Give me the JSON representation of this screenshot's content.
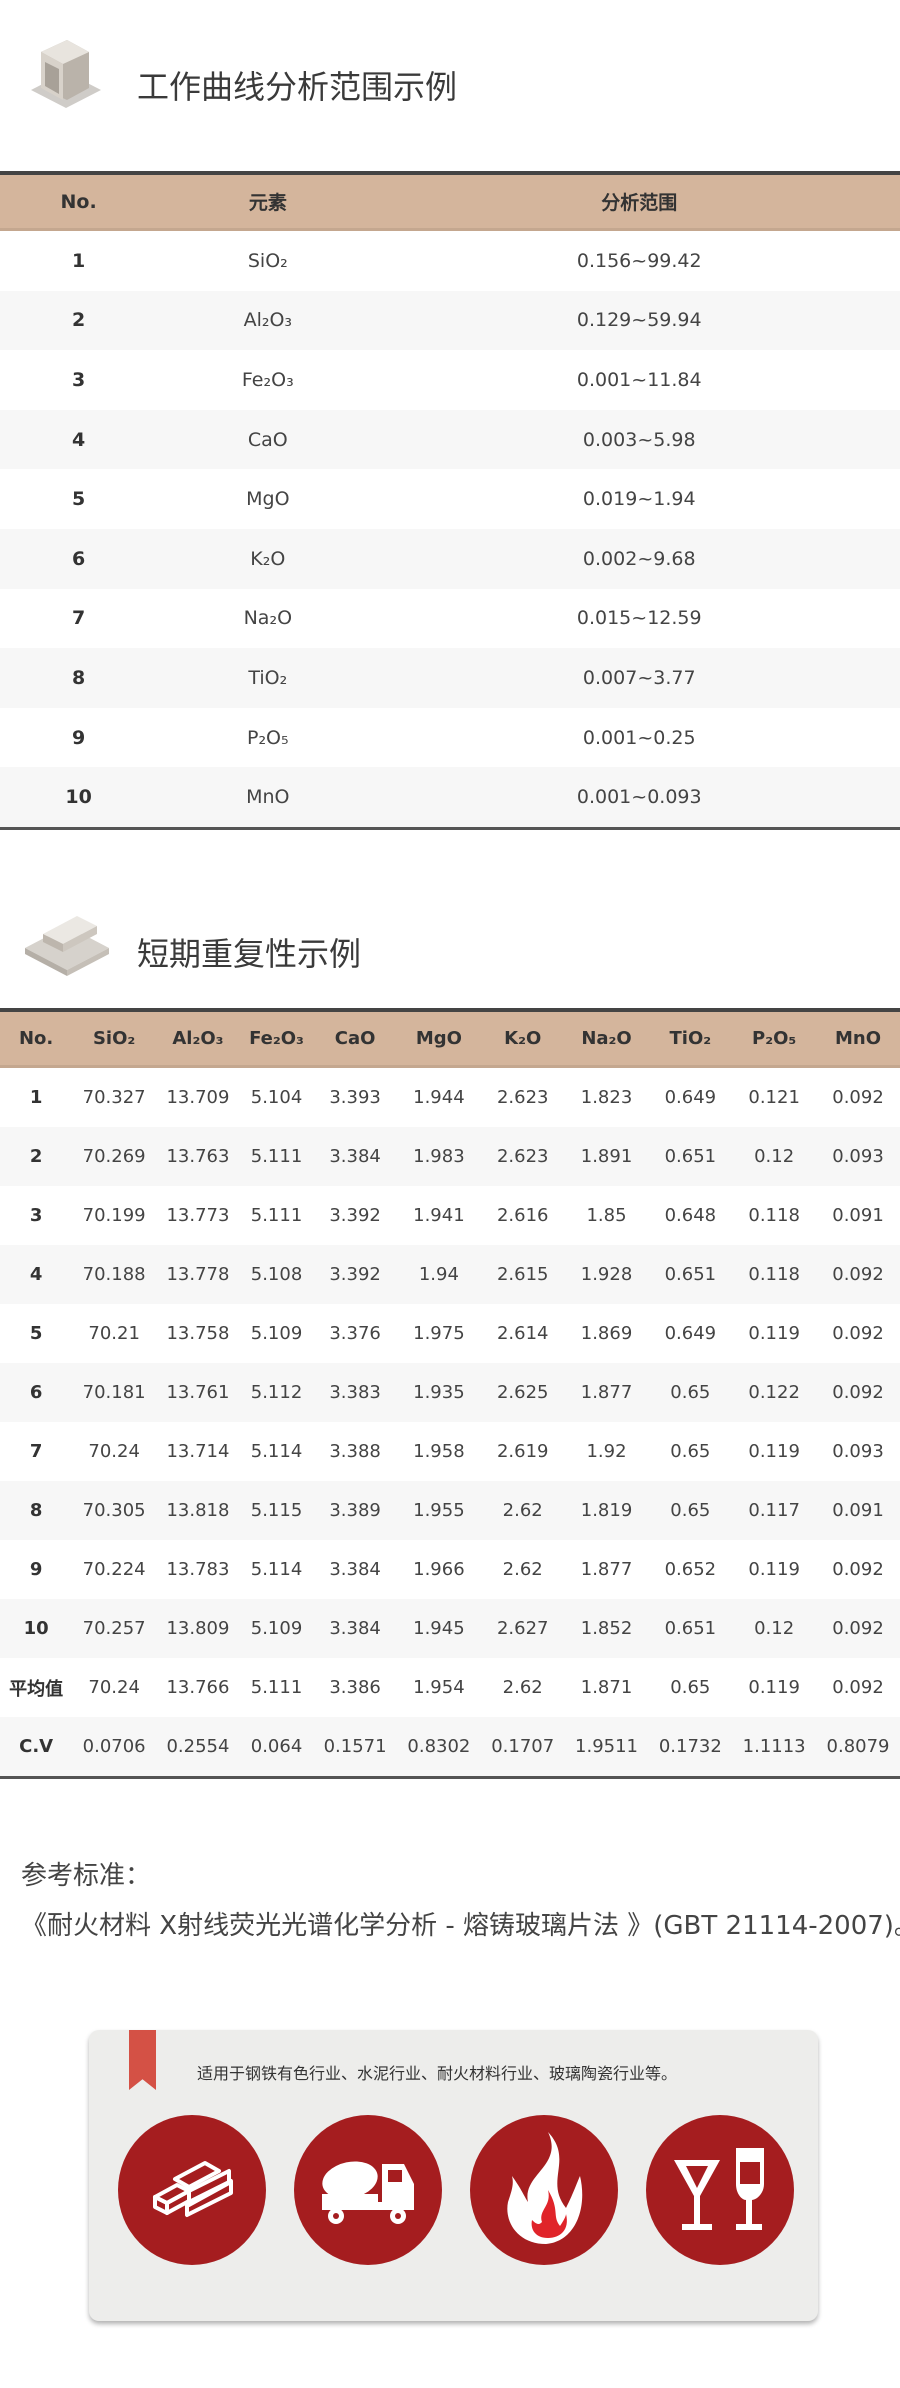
{
  "section1": {
    "title": "工作曲线分析范围示例",
    "icon": "refractory-block-icon",
    "headers": [
      "No.",
      "元素",
      "分析范围"
    ],
    "rows": [
      [
        "1",
        "SiO₂",
        "0.156~99.42"
      ],
      [
        "2",
        "Al₂O₃",
        "0.129~59.94"
      ],
      [
        "3",
        "Fe₂O₃",
        "0.001~11.84"
      ],
      [
        "4",
        "CaO",
        "0.003~5.98"
      ],
      [
        "5",
        "MgO",
        "0.019~1.94"
      ],
      [
        "6",
        "K₂O",
        "0.002~9.68"
      ],
      [
        "7",
        "Na₂O",
        "0.015~12.59"
      ],
      [
        "8",
        "TiO₂",
        "0.007~3.77"
      ],
      [
        "9",
        "P₂O₅",
        "0.001~0.25"
      ],
      [
        "10",
        "MnO",
        "0.001~0.093"
      ]
    ]
  },
  "section2": {
    "title": "短期重复性示例",
    "icon": "refractory-bricks-icon",
    "headers": [
      "No.",
      "SiO₂",
      "Al₂O₃",
      "Fe₂O₃",
      "CaO",
      "MgO",
      "K₂O",
      "Na₂O",
      "TiO₂",
      "P₂O₅",
      "MnO"
    ],
    "rows": [
      [
        "1",
        "70.327",
        "13.709",
        "5.104",
        "3.393",
        "1.944",
        "2.623",
        "1.823",
        "0.649",
        "0.121",
        "0.092"
      ],
      [
        "2",
        "70.269",
        "13.763",
        "5.111",
        "3.384",
        "1.983",
        "2.623",
        "1.891",
        "0.651",
        "0.12",
        "0.093"
      ],
      [
        "3",
        "70.199",
        "13.773",
        "5.111",
        "3.392",
        "1.941",
        "2.616",
        "1.85",
        "0.648",
        "0.118",
        "0.091"
      ],
      [
        "4",
        "70.188",
        "13.778",
        "5.108",
        "3.392",
        "1.94",
        "2.615",
        "1.928",
        "0.651",
        "0.118",
        "0.092"
      ],
      [
        "5",
        "70.21",
        "13.758",
        "5.109",
        "3.376",
        "1.975",
        "2.614",
        "1.869",
        "0.649",
        "0.119",
        "0.092"
      ],
      [
        "6",
        "70.181",
        "13.761",
        "5.112",
        "3.383",
        "1.935",
        "2.625",
        "1.877",
        "0.65",
        "0.122",
        "0.092"
      ],
      [
        "7",
        "70.24",
        "13.714",
        "5.114",
        "3.388",
        "1.958",
        "2.619",
        "1.92",
        "0.65",
        "0.119",
        "0.093"
      ],
      [
        "8",
        "70.305",
        "13.818",
        "5.115",
        "3.389",
        "1.955",
        "2.62",
        "1.819",
        "0.65",
        "0.117",
        "0.091"
      ],
      [
        "9",
        "70.224",
        "13.783",
        "5.114",
        "3.384",
        "1.966",
        "2.62",
        "1.877",
        "0.652",
        "0.119",
        "0.092"
      ],
      [
        "10",
        "70.257",
        "13.809",
        "5.109",
        "3.384",
        "1.945",
        "2.627",
        "1.852",
        "0.651",
        "0.12",
        "0.092"
      ],
      [
        "平均值",
        "70.24",
        "13.766",
        "5.111",
        "3.386",
        "1.954",
        "2.62",
        "1.871",
        "0.65",
        "0.119",
        "0.092"
      ],
      [
        "C.V",
        "0.0706",
        "0.2554",
        "0.064",
        "0.1571",
        "0.8302",
        "0.1707",
        "1.9511",
        "0.1732",
        "1.1113",
        "0.8079"
      ]
    ]
  },
  "reference": {
    "label": "参考标准：",
    "text": "《耐火材料 X射线荧光光谱化学分析 - 熔铸玻璃片法 》(GBT 21114-2007)。"
  },
  "applications": {
    "text": "适用于钢铁有色行业、水泥行业、耐火材料行业、玻璃陶瓷行业等。",
    "icons": [
      "metal-ingots-icon",
      "cement-mixer-truck-icon",
      "flame-icon",
      "glassware-icon"
    ],
    "accent": "#a51d1f",
    "bookmark_color": "#d45145"
  },
  "colors": {
    "header_bg": "#d4b59c",
    "stripe": "#f7f7f7",
    "border": "#444444"
  }
}
